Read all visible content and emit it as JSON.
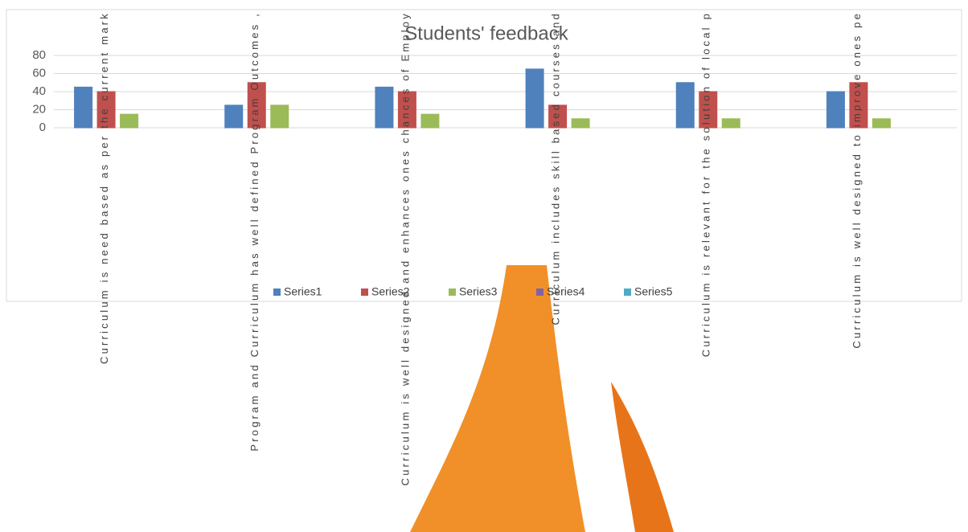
{
  "chart_data": {
    "type": "bar",
    "title": "Students' feedback",
    "categories": [
      "Curriculum is need based as per the current mark",
      "Program and Curriculum has well defined Program Outcomes ,",
      "Curriculum is well designed and enhances ones chances of Employ",
      "Curriculum includes skill based courses and",
      "Curriculum is relevant for the solution of local p",
      "Curriculum is well designed to improve ones pe"
    ],
    "series": [
      {
        "name": "Series1",
        "color": "#4f81bd",
        "values": [
          45,
          25,
          45,
          65,
          50,
          40
        ]
      },
      {
        "name": "Series2",
        "color": "#c0504d",
        "values": [
          40,
          50,
          40,
          25,
          40,
          50
        ]
      },
      {
        "name": "Series3",
        "color": "#9bbb59",
        "values": [
          15,
          25,
          15,
          10,
          10,
          10
        ]
      },
      {
        "name": "Series4",
        "color": "#8064a2",
        "values": [
          0,
          0,
          0,
          0,
          0,
          0
        ]
      },
      {
        "name": "Series5",
        "color": "#4bacc6",
        "values": [
          0,
          0,
          0,
          0,
          0,
          0
        ]
      }
    ],
    "ylim": [
      0,
      80
    ],
    "yticks": [
      0,
      20,
      40,
      60,
      80
    ],
    "grid": true,
    "legend": "bottom"
  }
}
